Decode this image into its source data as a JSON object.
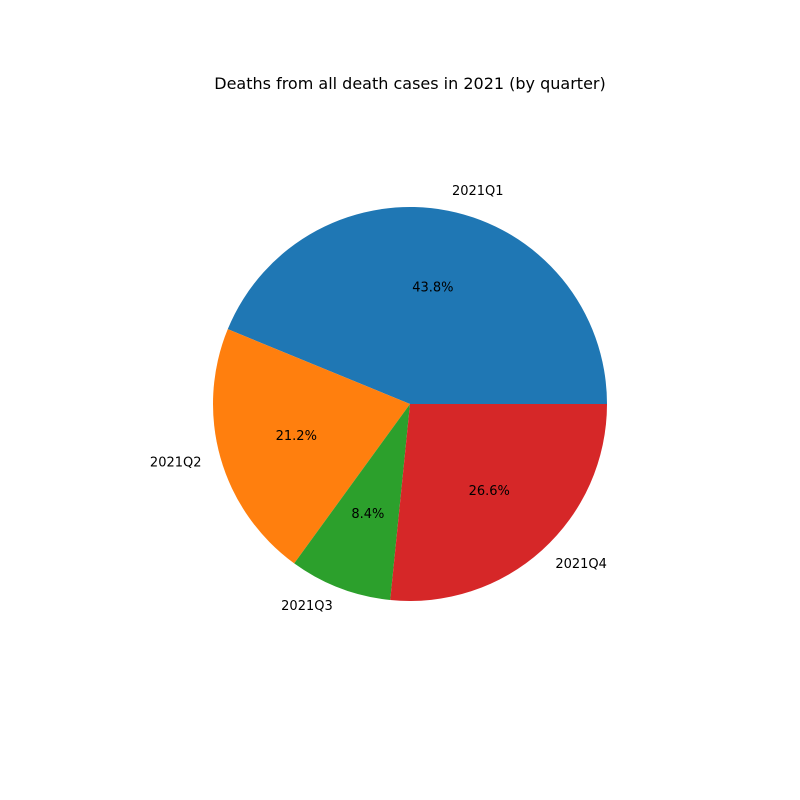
{
  "chart_data": {
    "type": "pie",
    "title": "Deaths from all death cases in 2021 (by quarter)",
    "start_angle_deg": 0,
    "direction": "counterclockwise",
    "categories": [
      "2021Q1",
      "2021Q2",
      "2021Q3",
      "2021Q4"
    ],
    "values": [
      43.8,
      21.2,
      8.4,
      26.6
    ],
    "percent_labels": [
      "43.8%",
      "21.2%",
      "8.4%",
      "26.6%"
    ],
    "colors": [
      "#1f77b4",
      "#ff7f0e",
      "#2ca02c",
      "#d62728"
    ]
  }
}
